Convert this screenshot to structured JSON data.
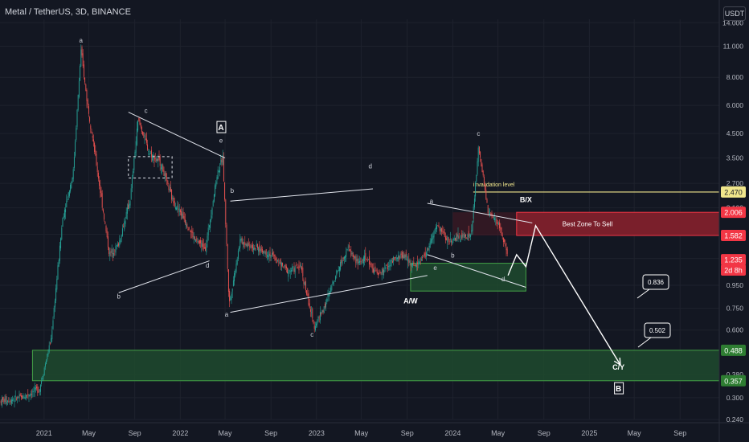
{
  "title": "Metal / TetherUS, 3D, BINANCE",
  "unit_label": "USDT",
  "colors": {
    "background": "#131722",
    "up": "#26a69a",
    "down": "#ef5350",
    "text": "#d1d4dc",
    "grid": "#1e222d",
    "green_zone": "#1e4a2e",
    "red_zone": "#7a1f2b",
    "invalidation": "#f0e68c"
  },
  "chart_data": {
    "type": "candlestick",
    "y_scale": "log",
    "ylim": [
      0.24,
      14.5
    ],
    "y_ticks": [
      "14.000",
      "11.000",
      "8.000",
      "6.000",
      "4.500",
      "3.500",
      "2.700",
      "2.100",
      "1.600",
      "1.250",
      "0.950",
      "0.750",
      "0.600",
      "0.480",
      "0.380",
      "0.300",
      "0.240"
    ],
    "y_tick_values": [
      14.0,
      11.0,
      8.0,
      6.0,
      4.5,
      3.5,
      2.7,
      2.1,
      1.6,
      1.25,
      0.95,
      0.75,
      0.6,
      0.48,
      0.38,
      0.3,
      0.24
    ],
    "x_ticks": [
      "2021",
      "May",
      "Sep",
      "2022",
      "May",
      "Sep",
      "2023",
      "May",
      "Sep",
      "2024",
      "May",
      "Sep",
      "2025",
      "May",
      "Sep"
    ],
    "x_tick_dates": [
      "2021-01-01",
      "2021-05-01",
      "2021-09-01",
      "2022-01-01",
      "2022-05-01",
      "2022-09-01",
      "2023-01-01",
      "2023-05-01",
      "2023-09-01",
      "2024-01-01",
      "2024-05-01",
      "2024-09-01",
      "2025-01-01",
      "2025-05-01",
      "2025-09-01"
    ],
    "x_range": [
      "2020-09-05",
      "2025-12-15"
    ],
    "price_path": [
      [
        "2020-09-05",
        0.29
      ],
      [
        "2020-11-01",
        0.3
      ],
      [
        "2020-12-20",
        0.33
      ],
      [
        "2021-01-20",
        0.55
      ],
      [
        "2021-02-20",
        1.9
      ],
      [
        "2021-03-20",
        3.0
      ],
      [
        "2021-04-10",
        10.5
      ],
      [
        "2021-04-25",
        6.5
      ],
      [
        "2021-05-20",
        3.4
      ],
      [
        "2021-06-25",
        1.3
      ],
      [
        "2021-07-20",
        1.45
      ],
      [
        "2021-08-20",
        2.3
      ],
      [
        "2021-09-10",
        5.2
      ],
      [
        "2021-10-10",
        3.7
      ],
      [
        "2021-11-10",
        3.3
      ],
      [
        "2021-12-10",
        2.3
      ],
      [
        "2022-01-10",
        1.9
      ],
      [
        "2022-02-10",
        1.5
      ],
      [
        "2022-03-10",
        1.4
      ],
      [
        "2022-04-10",
        3.0
      ],
      [
        "2022-04-25",
        3.5
      ],
      [
        "2022-05-12",
        0.78
      ],
      [
        "2022-06-10",
        1.5
      ],
      [
        "2022-07-20",
        1.4
      ],
      [
        "2022-09-01",
        1.3
      ],
      [
        "2022-10-15",
        1.1
      ],
      [
        "2022-11-20",
        1.15
      ],
      [
        "2022-12-25",
        0.62
      ],
      [
        "2023-01-25",
        0.78
      ],
      [
        "2023-02-20",
        1.05
      ],
      [
        "2023-03-25",
        1.4
      ],
      [
        "2023-04-20",
        1.2
      ],
      [
        "2023-05-15",
        1.25
      ],
      [
        "2023-06-15",
        1.05
      ],
      [
        "2023-07-20",
        1.2
      ],
      [
        "2023-08-20",
        1.3
      ],
      [
        "2023-09-20",
        1.15
      ],
      [
        "2023-10-20",
        1.3
      ],
      [
        "2023-11-20",
        1.75
      ],
      [
        "2023-12-20",
        1.5
      ],
      [
        "2024-01-20",
        1.55
      ],
      [
        "2024-02-20",
        1.6
      ],
      [
        "2024-03-10",
        3.9
      ],
      [
        "2024-04-05",
        2.0
      ],
      [
        "2024-05-05",
        1.75
      ],
      [
        "2024-05-28",
        1.25
      ]
    ],
    "path_labels": [
      {
        "text": "a",
        "date": "2021-04-10",
        "value": 11.4
      },
      {
        "text": "b",
        "date": "2021-07-20",
        "value": 0.83
      },
      {
        "text": "c",
        "date": "2021-10-01",
        "value": 5.55
      },
      {
        "text": "d",
        "date": "2022-03-15",
        "value": 1.14
      },
      {
        "text": "e",
        "date": "2022-04-20",
        "value": 4.1
      },
      {
        "text": "b",
        "date": "2022-05-20",
        "value": 2.45
      },
      {
        "text": "a",
        "date": "2022-05-05",
        "value": 0.69
      },
      {
        "text": "c",
        "date": "2022-12-20",
        "value": 0.56
      },
      {
        "text": "d",
        "date": "2023-05-25",
        "value": 3.15
      },
      {
        "text": "a",
        "date": "2023-11-05",
        "value": 2.2
      },
      {
        "text": "b",
        "date": "2024-01-01",
        "value": 1.26
      },
      {
        "text": "e",
        "date": "2023-11-15",
        "value": 1.11
      },
      {
        "text": "c",
        "date": "2024-03-10",
        "value": 4.4
      },
      {
        "text": "d",
        "date": "2024-05-15",
        "value": 0.99
      }
    ],
    "boxed_labels": [
      {
        "text": "A",
        "date": "2022-04-20",
        "value": 4.65
      },
      {
        "text": "B",
        "date": "2025-03-20",
        "value": 0.32
      }
    ],
    "bold_labels": [
      {
        "text": "A/W",
        "date": "2023-09-10",
        "value": 0.79
      },
      {
        "text": "B/X",
        "date": "2024-07-15",
        "value": 2.23
      },
      {
        "text": "C/Y",
        "date": "2025-03-20",
        "value": 0.4
      }
    ],
    "trendlines": [
      {
        "from": [
          "2021-08-15",
          5.6
        ],
        "to": [
          "2022-05-01",
          3.5
        ]
      },
      {
        "from": [
          "2021-07-20",
          0.88
        ],
        "to": [
          "2022-03-20",
          1.22
        ]
      },
      {
        "from": [
          "2022-05-15",
          2.25
        ],
        "to": [
          "2023-06-01",
          2.55
        ]
      },
      {
        "from": [
          "2022-05-15",
          0.72
        ],
        "to": [
          "2023-10-25",
          1.05
        ]
      },
      {
        "from": [
          "2023-10-25",
          2.2
        ],
        "to": [
          "2024-08-01",
          1.8
        ]
      },
      {
        "from": [
          "2023-10-25",
          1.3
        ],
        "to": [
          "2024-07-15",
          0.93
        ]
      }
    ],
    "dashed_box": {
      "from": [
        "2021-08-15",
        3.55
      ],
      "to": [
        "2021-12-10",
        2.85
      ]
    },
    "projection": [
      [
        "2024-05-28",
        1.05
      ],
      [
        "2024-06-20",
        1.3
      ],
      [
        "2024-07-15",
        1.15
      ],
      [
        "2024-08-10",
        1.75
      ],
      [
        "2025-03-25",
        0.42
      ]
    ],
    "zones": [
      {
        "kind": "sell",
        "label": "Best Zone To Sell",
        "from_date": "2024-01-01",
        "to_date": "2025-12-15",
        "top": 2.006,
        "bottom": 1.582,
        "faded_until": "2024-06-20"
      },
      {
        "kind": "buy",
        "label": "",
        "from_date": "2023-09-10",
        "to_date": "2024-07-15",
        "top": 1.19,
        "bottom": 0.895
      },
      {
        "kind": "buy",
        "label": "",
        "from_date": "2020-12-01",
        "to_date": "2025-12-15",
        "top": 0.488,
        "bottom": 0.357
      }
    ],
    "invalidation": {
      "label": "invalidation level",
      "from_date": "2024-02-25",
      "value": 2.47
    },
    "callouts": [
      "0.836",
      "0.502"
    ],
    "price_tags": [
      {
        "text": "2.470",
        "value": 2.47,
        "bg": "#f0e68c",
        "fg": "#131722"
      },
      {
        "text": "2.006",
        "value": 2.006,
        "bg": "#f23645",
        "fg": "#ffffff"
      },
      {
        "text": "1.582",
        "value": 1.582,
        "bg": "#f23645",
        "fg": "#ffffff"
      },
      {
        "text": "1.235",
        "value": 1.235,
        "bg": "#f23645",
        "fg": "#ffffff"
      },
      {
        "text": "2d 8h",
        "value": 1.11,
        "bg": "#f23645",
        "fg": "#ffffff"
      },
      {
        "text": "0.488",
        "value": 0.488,
        "bg": "#2e7d32",
        "fg": "#ffffff"
      },
      {
        "text": "0.357",
        "value": 0.357,
        "bg": "#2e7d32",
        "fg": "#ffffff"
      }
    ]
  }
}
